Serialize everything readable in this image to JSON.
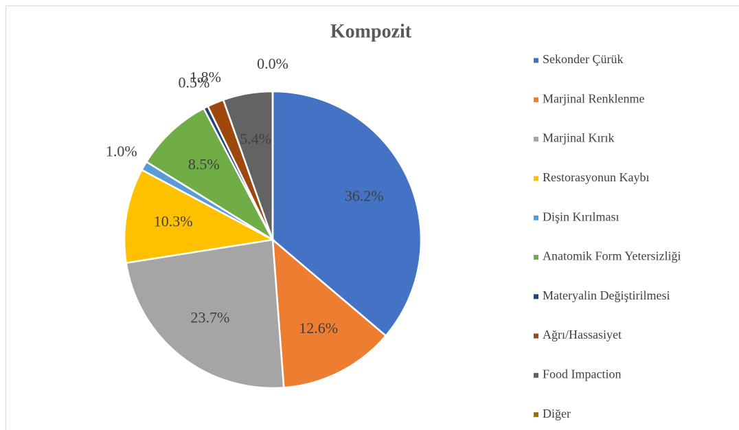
{
  "chart_data": {
    "type": "pie",
    "title": "Kompozit",
    "categories": [
      "Sekonder Çürük",
      "Marjinal Renklenme",
      "Marjinal Kırık",
      "Restorasyonun Kaybı",
      "Dişin Kırılması",
      "Anatomik Form Yetersizliği",
      "Materyalin Değiştirilmesi",
      "Ağrı/Hassasiyet",
      "Food Impaction",
      "Diğer"
    ],
    "values": [
      36.2,
      12.6,
      23.7,
      10.3,
      1.0,
      8.5,
      0.5,
      1.8,
      5.4,
      0.0
    ],
    "value_labels": [
      "36.2%",
      "12.6%",
      "23.7%",
      "10.3%",
      "1.0%",
      "8.5%",
      "0.5%",
      "1.8%",
      "5.4%",
      "0.0%"
    ],
    "colors": [
      "#4472c4",
      "#ed7d31",
      "#a5a5a5",
      "#ffc000",
      "#5b9bd5",
      "#70ad47",
      "#264478",
      "#9e480e",
      "#636363",
      "#997300"
    ],
    "legend": "right"
  }
}
